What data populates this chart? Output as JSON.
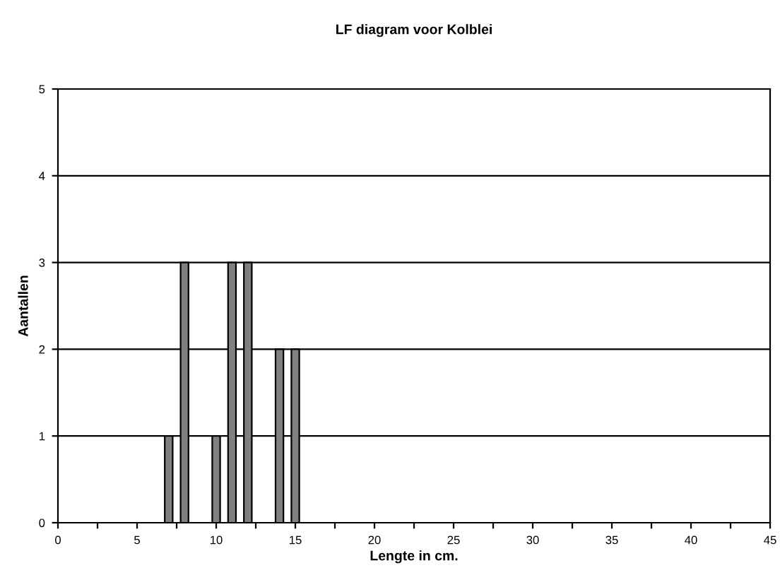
{
  "chart_data": {
    "type": "bar",
    "title": "LF diagram voor Kolblei",
    "xlabel": "Lengte in cm.",
    "ylabel": "Aantallen",
    "x": [
      7,
      8,
      10,
      11,
      12,
      14,
      15
    ],
    "series": [
      {
        "color": "#808080",
        "values": [
          1,
          3,
          1,
          3,
          3,
          2,
          2
        ]
      }
    ],
    "xlim": [
      0,
      45
    ],
    "xticks": [
      0,
      {
        "value": 2.5,
        "label": null
      },
      5,
      {
        "value": 7.5,
        "label": null
      },
      10,
      {
        "value": 12.5,
        "label": null
      },
      15,
      {
        "value": 17.5,
        "label": null
      },
      20,
      {
        "value": 22.5,
        "label": null
      },
      25,
      {
        "value": 27.5,
        "label": null
      },
      30,
      {
        "value": 32.5,
        "label": null
      },
      35,
      {
        "value": 37.5,
        "label": null
      },
      40,
      {
        "value": 42.5,
        "label": null
      },
      45
    ],
    "ylim": [
      0,
      5
    ],
    "yticks": [
      0,
      1,
      2,
      3,
      4,
      5
    ],
    "grid": "y"
  }
}
